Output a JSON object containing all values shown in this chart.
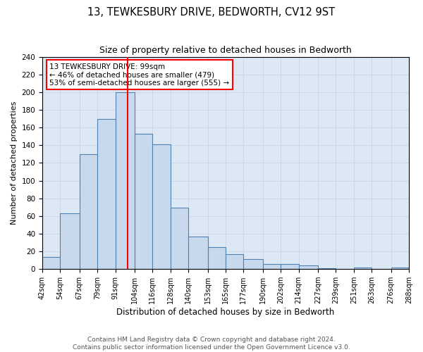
{
  "title": "13, TEWKESBURY DRIVE, BEDWORTH, CV12 9ST",
  "subtitle": "Size of property relative to detached houses in Bedworth",
  "xlabel": "Distribution of detached houses by size in Bedworth",
  "ylabel": "Number of detached properties",
  "bin_edges": [
    42,
    54,
    67,
    79,
    91,
    104,
    116,
    128,
    140,
    153,
    165,
    177,
    190,
    202,
    214,
    227,
    239,
    251,
    263,
    276,
    288
  ],
  "bin_labels": [
    "42sqm",
    "54sqm",
    "67sqm",
    "79sqm",
    "91sqm",
    "104sqm",
    "116sqm",
    "128sqm",
    "140sqm",
    "153sqm",
    "165sqm",
    "177sqm",
    "190sqm",
    "202sqm",
    "214sqm",
    "227sqm",
    "239sqm",
    "251sqm",
    "263sqm",
    "276sqm",
    "288sqm"
  ],
  "counts": [
    14,
    63,
    130,
    170,
    200,
    153,
    141,
    69,
    37,
    25,
    17,
    11,
    6,
    6,
    4,
    1,
    0,
    2,
    0,
    2
  ],
  "bar_facecolor": "#c9d9ed",
  "bar_edgecolor": "#5080b0",
  "bar_linewidth": 0.8,
  "vline_x": 99,
  "vline_color": "red",
  "vline_linewidth": 1.5,
  "ylim": [
    0,
    240
  ],
  "yticks": [
    0,
    20,
    40,
    60,
    80,
    100,
    120,
    140,
    160,
    180,
    200,
    220,
    240
  ],
  "annotation_box_text_line1": "13 TEWKESBURY DRIVE: 99sqm",
  "annotation_box_text_line2": "← 46% of detached houses are smaller (479)",
  "annotation_box_text_line3": "53% of semi-detached houses are larger (555) →",
  "annotation_box_facecolor": "white",
  "annotation_box_edgecolor": "red",
  "annotation_fontsize": 7.5,
  "grid_color": "#c8d4e8",
  "axes_background_color": "#dde8f5",
  "figure_background_color": "white",
  "footer_line1": "Contains HM Land Registry data © Crown copyright and database right 2024.",
  "footer_line2": "Contains public sector information licensed under the Open Government Licence v3.0.",
  "title_fontsize": 10.5,
  "subtitle_fontsize": 9,
  "xlabel_fontsize": 8.5,
  "ylabel_fontsize": 8,
  "tick_fontsize": 7,
  "ytick_fontsize": 7.5,
  "footer_fontsize": 6.5
}
